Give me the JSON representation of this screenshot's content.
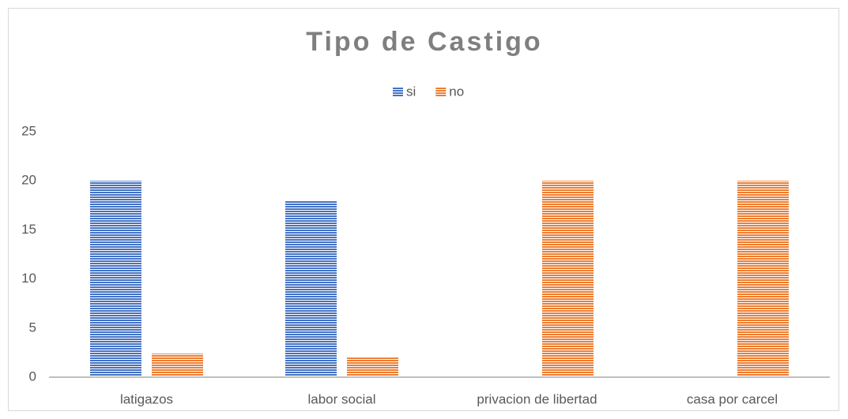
{
  "chart_data": {
    "type": "bar",
    "title": "Tipo de Castigo",
    "categories": [
      "latigazos",
      "labor social",
      "privacion de libertad",
      "casa por carcel"
    ],
    "series": [
      {
        "name": "si",
        "color": "#4472c4",
        "values": [
          20,
          18,
          0,
          0
        ]
      },
      {
        "name": "no",
        "color": "#ed7d31",
        "values": [
          2.4,
          2,
          20,
          20
        ]
      }
    ],
    "ylim": [
      0,
      25
    ],
    "yticks": [
      0,
      5,
      10,
      15,
      20,
      25
    ],
    "grid": false,
    "legend": "top"
  }
}
